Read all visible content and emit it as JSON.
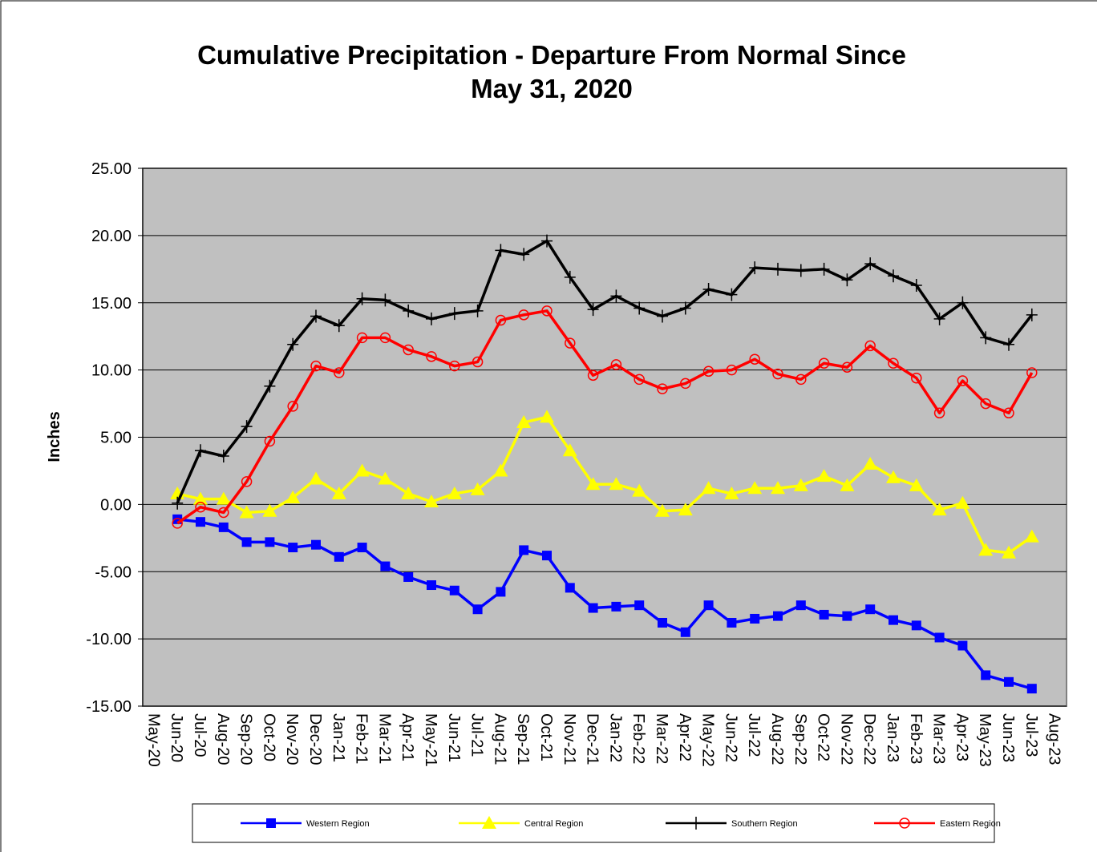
{
  "chart_data": {
    "type": "line",
    "title": [
      "Cumulative Precipitation - Departure From Normal Since",
      "May 31,  2020"
    ],
    "y_label": "Inches",
    "categories": [
      "May-20",
      "Jun-20",
      "Jul-20",
      "Aug-20",
      "Sep-20",
      "Oct-20",
      "Nov-20",
      "Dec-20",
      "Jan-21",
      "Feb-21",
      "Mar-21",
      "Apr-21",
      "May-21",
      "Jun-21",
      "Jul-21",
      "Aug-21",
      "Sep-21",
      "Oct-21",
      "Nov-21",
      "Dec-21",
      "Jan-22",
      "Feb-22",
      "Mar-22",
      "Apr-22",
      "May-22",
      "Jun-22",
      "Jul-22",
      "Aug-22",
      "Sep-22",
      "Oct-22",
      "Nov-22",
      "Dec-22",
      "Jan-23",
      "Feb-23",
      "Mar-23",
      "Apr-23",
      "May-23",
      "Jun-23",
      "Jul-23",
      "Aug-23"
    ],
    "series": [
      {
        "name": "Western Region",
        "color": "#0000ff",
        "marker": "square",
        "values": [
          null,
          -1.1,
          -1.3,
          -1.7,
          -2.8,
          -2.8,
          -3.2,
          -3.0,
          -3.9,
          -3.2,
          -4.6,
          -5.4,
          -6.0,
          -6.4,
          -7.8,
          -6.5,
          -3.4,
          -3.8,
          -6.2,
          -7.7,
          -7.6,
          -7.5,
          -8.8,
          -9.5,
          -7.5,
          -8.8,
          -8.5,
          -8.3,
          -7.5,
          -8.2,
          -8.3,
          -7.8,
          -8.6,
          -9.0,
          -9.9,
          -10.5,
          -12.7,
          -13.2,
          -13.7,
          null
        ]
      },
      {
        "name": "Central Region",
        "color": "#ffff00",
        "marker": "triangle",
        "values": [
          null,
          0.8,
          0.4,
          0.4,
          -0.6,
          -0.5,
          0.5,
          1.9,
          0.8,
          2.5,
          1.9,
          0.8,
          0.2,
          0.8,
          1.1,
          2.5,
          6.1,
          6.5,
          4.0,
          1.5,
          1.5,
          1.0,
          -0.5,
          -0.4,
          1.2,
          0.8,
          1.2,
          1.2,
          1.4,
          2.1,
          1.4,
          3.0,
          2.0,
          1.4,
          -0.4,
          0.1,
          -3.4,
          -3.6,
          -2.4,
          null
        ]
      },
      {
        "name": "Southern Region",
        "color": "#000000",
        "marker": "plus",
        "values": [
          null,
          0.1,
          4.0,
          3.6,
          5.8,
          8.8,
          11.9,
          14.0,
          13.3,
          15.3,
          15.2,
          14.4,
          13.8,
          14.2,
          14.4,
          18.9,
          18.6,
          19.6,
          16.9,
          14.5,
          15.5,
          14.6,
          14.0,
          14.6,
          16.0,
          15.6,
          17.6,
          17.5,
          17.4,
          17.5,
          16.7,
          17.9,
          17.0,
          16.3,
          13.8,
          15.0,
          12.4,
          11.9,
          14.1,
          null
        ]
      },
      {
        "name": "Eastern Region",
        "color": "#ff0000",
        "marker": "circle",
        "values": [
          null,
          -1.4,
          -0.2,
          -0.6,
          1.7,
          4.7,
          7.3,
          10.3,
          9.8,
          12.4,
          12.4,
          11.5,
          11.0,
          10.3,
          10.6,
          13.7,
          14.1,
          14.4,
          12.0,
          9.6,
          10.4,
          9.3,
          8.6,
          9.0,
          9.9,
          10.0,
          10.8,
          9.7,
          9.3,
          10.5,
          10.2,
          11.8,
          10.5,
          9.4,
          6.8,
          9.2,
          7.5,
          6.8,
          9.8,
          null
        ]
      }
    ],
    "ylim": [
      -15,
      25
    ],
    "yticks": [
      {
        "value": -15,
        "label": "-15.00"
      },
      {
        "value": -10,
        "label": "-10.00"
      },
      {
        "value": -5,
        "label": "-5.00"
      },
      {
        "value": 0,
        "label": "0.00"
      },
      {
        "value": 5,
        "label": "5.00"
      },
      {
        "value": 10,
        "label": "10.00"
      },
      {
        "value": 15,
        "label": "15.00"
      },
      {
        "value": 20,
        "label": "20.00"
      },
      {
        "value": 25,
        "label": "25.00"
      }
    ],
    "grid": true,
    "plot_background": "#c0c0c0",
    "legend": "bottom"
  }
}
